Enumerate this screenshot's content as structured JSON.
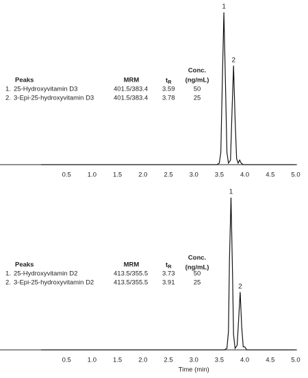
{
  "chart_data": [
    {
      "type": "line",
      "x": [
        0,
        3.45,
        3.5,
        3.53,
        3.56,
        3.59,
        3.62,
        3.65,
        3.68,
        3.72,
        3.75,
        3.78,
        3.81,
        3.84,
        3.87,
        3.9,
        3.93,
        3.97,
        5.0
      ],
      "values": [
        0,
        0,
        1,
        8,
        55,
        100,
        55,
        8,
        1,
        3,
        35,
        65,
        30,
        4,
        1,
        3,
        1,
        0,
        0
      ],
      "color": "#111111",
      "xlim": [
        0,
        5
      ],
      "ylim": [
        0,
        100
      ],
      "xticks": [
        0.5,
        {
          "value": 1,
          "label": "1.0"
        },
        1.5,
        {
          "value": 2,
          "label": "2.0"
        },
        2.5,
        {
          "value": 3,
          "label": "3.0"
        },
        3.5,
        {
          "value": 4,
          "label": "4.0"
        },
        4.5,
        {
          "value": 5,
          "label": "5.0"
        }
      ],
      "table_header": {
        "peaks": "Peaks",
        "mrm": "MRM",
        "tr": {
          "text": "t",
          "sub": "R"
        },
        "conc": [
          "Conc.",
          "(ng/mL)"
        ]
      },
      "peaks": [
        {
          "index": "1.",
          "label": "1",
          "name": "25-Hydroxyvitamin D3",
          "mrm": "401.5/383.4",
          "tr": 3.59,
          "conc": 50
        },
        {
          "index": "2.",
          "label": "2",
          "name": "3-Epi-25-hydroxyvitamin D3",
          "mrm": "401.5/383.4",
          "tr": 3.78,
          "conc": 25
        }
      ]
    },
    {
      "type": "line",
      "x": [
        0,
        3.6,
        3.65,
        3.68,
        3.7,
        3.73,
        3.76,
        3.78,
        3.81,
        3.85,
        3.88,
        3.91,
        3.94,
        3.97,
        4.0,
        4.04,
        5.0
      ],
      "values": [
        0,
        0,
        1,
        12,
        60,
        100,
        50,
        10,
        1,
        3,
        20,
        38,
        15,
        2,
        2,
        0,
        0
      ],
      "color": "#111111",
      "xlim": [
        0,
        5
      ],
      "ylim": [
        0,
        100
      ],
      "xlabel": "Time (min)",
      "xticks": [
        0.5,
        {
          "value": 1,
          "label": "1.0"
        },
        1.5,
        {
          "value": 2,
          "label": "2.0"
        },
        2.5,
        {
          "value": 3,
          "label": "3.0"
        },
        3.5,
        {
          "value": 4,
          "label": "4.0"
        },
        4.5,
        {
          "value": 5,
          "label": "5.0"
        }
      ],
      "table_header": {
        "peaks": "Peaks",
        "mrm": "MRM",
        "tr": {
          "text": "t",
          "sub": "R"
        },
        "conc": [
          "Conc.",
          "(ng/mL)"
        ]
      },
      "peaks": [
        {
          "index": "1.",
          "label": "1",
          "name": "25-Hydroxyvitamin D2",
          "mrm": "413.5/355.5",
          "tr": 3.73,
          "conc": 50
        },
        {
          "index": "2.",
          "label": "2",
          "name": "3-Epi-25-hydroxyvitamin D2",
          "mrm": "413.5/355.5",
          "tr": 3.91,
          "conc": 25
        }
      ]
    }
  ]
}
